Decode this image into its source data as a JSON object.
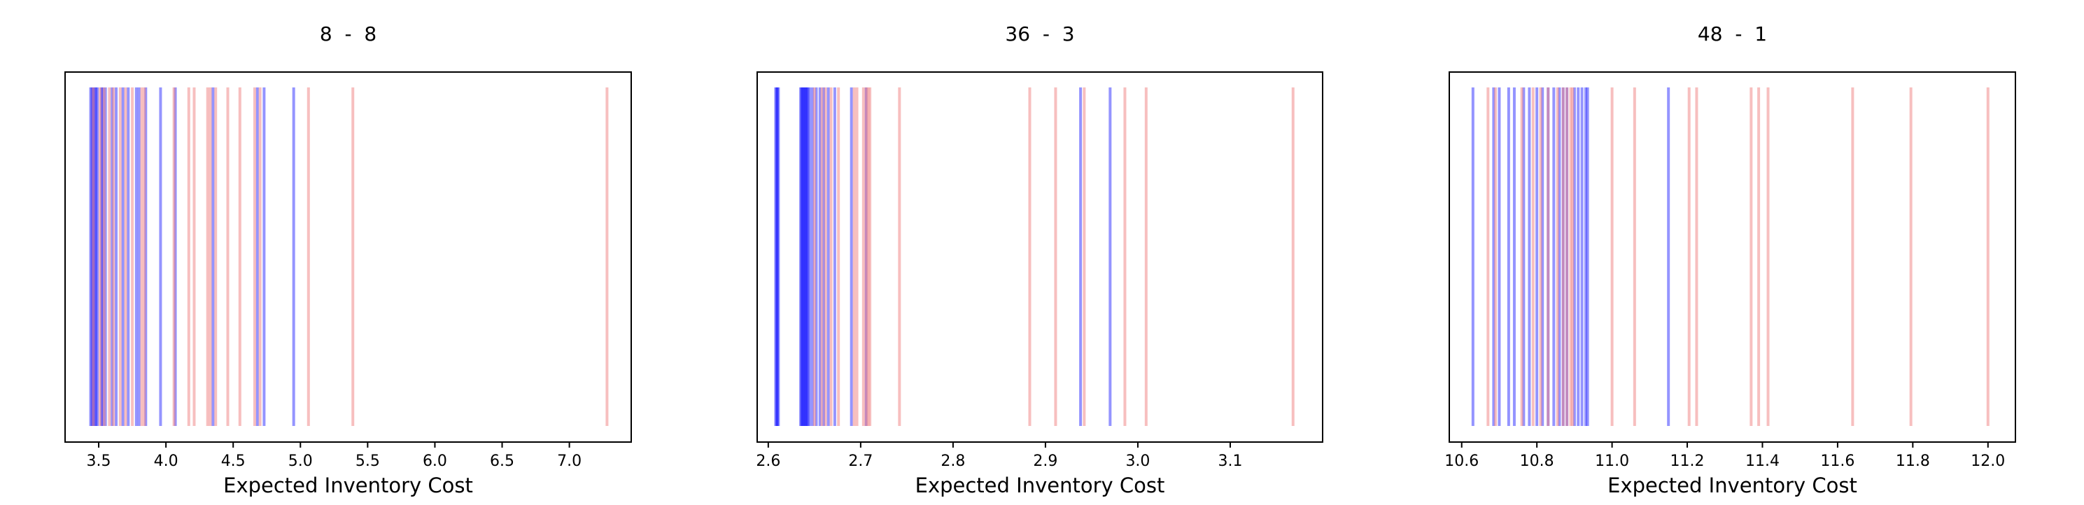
{
  "colors": {
    "blue": "#0000ff",
    "red": "#f08080"
  },
  "chart_data": [
    {
      "type": "rug",
      "title": "8  -  8",
      "xlabel": "Expected Inventory Cost",
      "ylabel": "",
      "xlim": [
        3.25,
        7.46
      ],
      "xticks": [
        3.5,
        4.0,
        4.5,
        5.0,
        5.5,
        6.0,
        6.5,
        7.0
      ],
      "xtick_labels": [
        "3.5",
        "4.0",
        "4.5",
        "5.0",
        "5.5",
        "6.0",
        "6.5",
        "7.0"
      ],
      "grid": false,
      "series": [
        {
          "color": "blue",
          "values": [
            3.44,
            3.45,
            3.46,
            3.47,
            3.48,
            3.49,
            3.52,
            3.53,
            3.55,
            3.6,
            3.63,
            3.68,
            3.72,
            3.78,
            3.8,
            3.85,
            3.96,
            4.07,
            4.35,
            4.68,
            4.73,
            4.95
          ]
        },
        {
          "color": "red",
          "values": [
            3.46,
            3.51,
            3.54,
            3.58,
            3.61,
            3.66,
            3.7,
            3.75,
            3.82,
            3.84,
            4.06,
            4.17,
            4.21,
            4.31,
            4.33,
            4.37,
            4.46,
            4.55,
            4.66,
            4.7,
            5.06,
            5.39,
            7.28
          ]
        }
      ]
    },
    {
      "type": "rug",
      "title": "36  -  3",
      "xlabel": "Expected Inventory Cost",
      "ylabel": "",
      "xlim": [
        2.588,
        3.2
      ],
      "xticks": [
        2.6,
        2.7,
        2.8,
        2.9,
        3.0,
        3.1
      ],
      "xtick_labels": [
        "2.6",
        "2.7",
        "2.8",
        "2.9",
        "3.0",
        "3.1"
      ],
      "grid": false,
      "series": [
        {
          "color": "blue",
          "values": [
            2.608,
            2.609,
            2.61,
            2.611,
            2.635,
            2.636,
            2.637,
            2.638,
            2.639,
            2.64,
            2.641,
            2.642,
            2.643,
            2.645,
            2.648,
            2.652,
            2.656,
            2.66,
            2.665,
            2.672,
            2.69,
            2.706,
            2.938,
            2.97
          ]
        },
        {
          "color": "red",
          "values": [
            2.65,
            2.658,
            2.662,
            2.668,
            2.676,
            2.693,
            2.696,
            2.703,
            2.706,
            2.708,
            2.71,
            2.742,
            2.883,
            2.911,
            2.942,
            2.986,
            3.009,
            3.168
          ]
        }
      ]
    },
    {
      "type": "rug",
      "title": "48  -  1",
      "xlabel": "Expected Inventory Cost",
      "ylabel": "",
      "xlim": [
        10.567,
        12.073
      ],
      "xticks": [
        10.6,
        10.8,
        11.0,
        11.2,
        11.4,
        11.6,
        11.8,
        12.0
      ],
      "xtick_labels": [
        "10.6",
        "10.8",
        "11.0",
        "11.2",
        "11.4",
        "11.6",
        "11.8",
        "12.0"
      ],
      "grid": false,
      "series": [
        {
          "color": "blue",
          "values": [
            10.63,
            10.685,
            10.7,
            10.725,
            10.74,
            10.765,
            10.78,
            10.8,
            10.815,
            10.83,
            10.845,
            10.86,
            10.87,
            10.88,
            10.9,
            10.91,
            10.92,
            10.93,
            10.935,
            11.15
          ]
        },
        {
          "color": "red",
          "values": [
            10.67,
            10.69,
            10.76,
            10.79,
            10.81,
            10.83,
            10.855,
            10.87,
            10.88,
            10.89,
            10.895,
            11.0,
            11.06,
            11.205,
            11.225,
            11.37,
            11.39,
            11.415,
            11.64,
            11.795,
            12.0
          ]
        }
      ]
    }
  ]
}
